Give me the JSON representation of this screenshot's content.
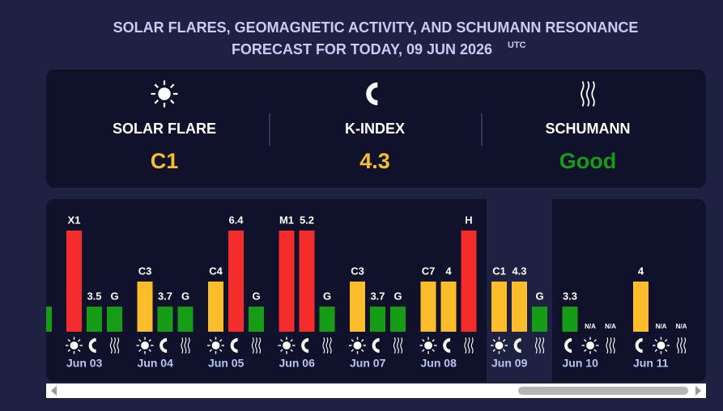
{
  "title": {
    "line1": "SOLAR FLARES, GEOMAGNETIC ACTIVITY, AND SCHUMANN RESONANCE",
    "line2": "FORECAST FOR TODAY, 09 JUN 2026",
    "suffix": "UTC"
  },
  "today": [
    {
      "icon": "sun",
      "heading": "SOLAR FLARE",
      "value": "C1",
      "color": "#fbbd2b"
    },
    {
      "icon": "magnet",
      "heading": "K-INDEX",
      "value": "4.3",
      "color": "#fbbd2b"
    },
    {
      "icon": "waves",
      "heading": "SCHUMANN",
      "value": "Good",
      "color": "#169c16"
    }
  ],
  "days": [
    {
      "label": "Jun 03",
      "items": [
        {
          "icon": "sun",
          "label": "X1",
          "color": "#f52c2c"
        },
        {
          "icon": "magnet",
          "label": "3.5",
          "color": "#169c16"
        },
        {
          "icon": "waves",
          "label": "G",
          "color": "#169c16"
        }
      ]
    },
    {
      "label": "Jun 04",
      "items": [
        {
          "icon": "sun",
          "label": "C3",
          "color": "#fbbd2b"
        },
        {
          "icon": "magnet",
          "label": "3.7",
          "color": "#169c16"
        },
        {
          "icon": "waves",
          "label": "G",
          "color": "#169c16"
        }
      ]
    },
    {
      "label": "Jun 05",
      "items": [
        {
          "icon": "sun",
          "label": "C4",
          "color": "#fbbd2b"
        },
        {
          "icon": "magnet",
          "label": "6.4",
          "color": "#f52c2c"
        },
        {
          "icon": "waves",
          "label": "G",
          "color": "#169c16"
        }
      ]
    },
    {
      "label": "Jun 06",
      "items": [
        {
          "icon": "sun",
          "label": "M1",
          "color": "#f52c2c"
        },
        {
          "icon": "magnet",
          "label": "5.2",
          "color": "#f52c2c"
        },
        {
          "icon": "waves",
          "label": "G",
          "color": "#169c16"
        }
      ]
    },
    {
      "label": "Jun 07",
      "items": [
        {
          "icon": "sun",
          "label": "C3",
          "color": "#fbbd2b"
        },
        {
          "icon": "magnet",
          "label": "3.7",
          "color": "#169c16"
        },
        {
          "icon": "waves",
          "label": "G",
          "color": "#169c16"
        }
      ]
    },
    {
      "label": "Jun 08",
      "items": [
        {
          "icon": "sun",
          "label": "C7",
          "color": "#fbbd2b"
        },
        {
          "icon": "magnet",
          "label": "4",
          "color": "#fbbd2b"
        },
        {
          "icon": "waves",
          "label": "H",
          "color": "#f52c2c"
        }
      ]
    },
    {
      "label": "Jun 09",
      "highlight": true,
      "items": [
        {
          "icon": "sun",
          "label": "C1",
          "color": "#fbbd2b"
        },
        {
          "icon": "magnet",
          "label": "4.3",
          "color": "#fbbd2b"
        },
        {
          "icon": "waves",
          "label": "G",
          "color": "#169c16"
        }
      ]
    },
    {
      "label": "Jun 10",
      "items": [
        {
          "icon": "magnet",
          "label": "3.3",
          "color": "#169c16"
        },
        {
          "icon": "sun",
          "label": "N/A",
          "color": null
        },
        {
          "icon": "waves",
          "label": "N/A",
          "color": null
        }
      ]
    },
    {
      "label": "Jun 11",
      "items": [
        {
          "icon": "magnet",
          "label": "4",
          "color": "#fbbd2b"
        },
        {
          "icon": "sun",
          "label": "N/A",
          "color": null
        },
        {
          "icon": "waves",
          "label": "N/A",
          "color": null
        }
      ]
    }
  ]
}
